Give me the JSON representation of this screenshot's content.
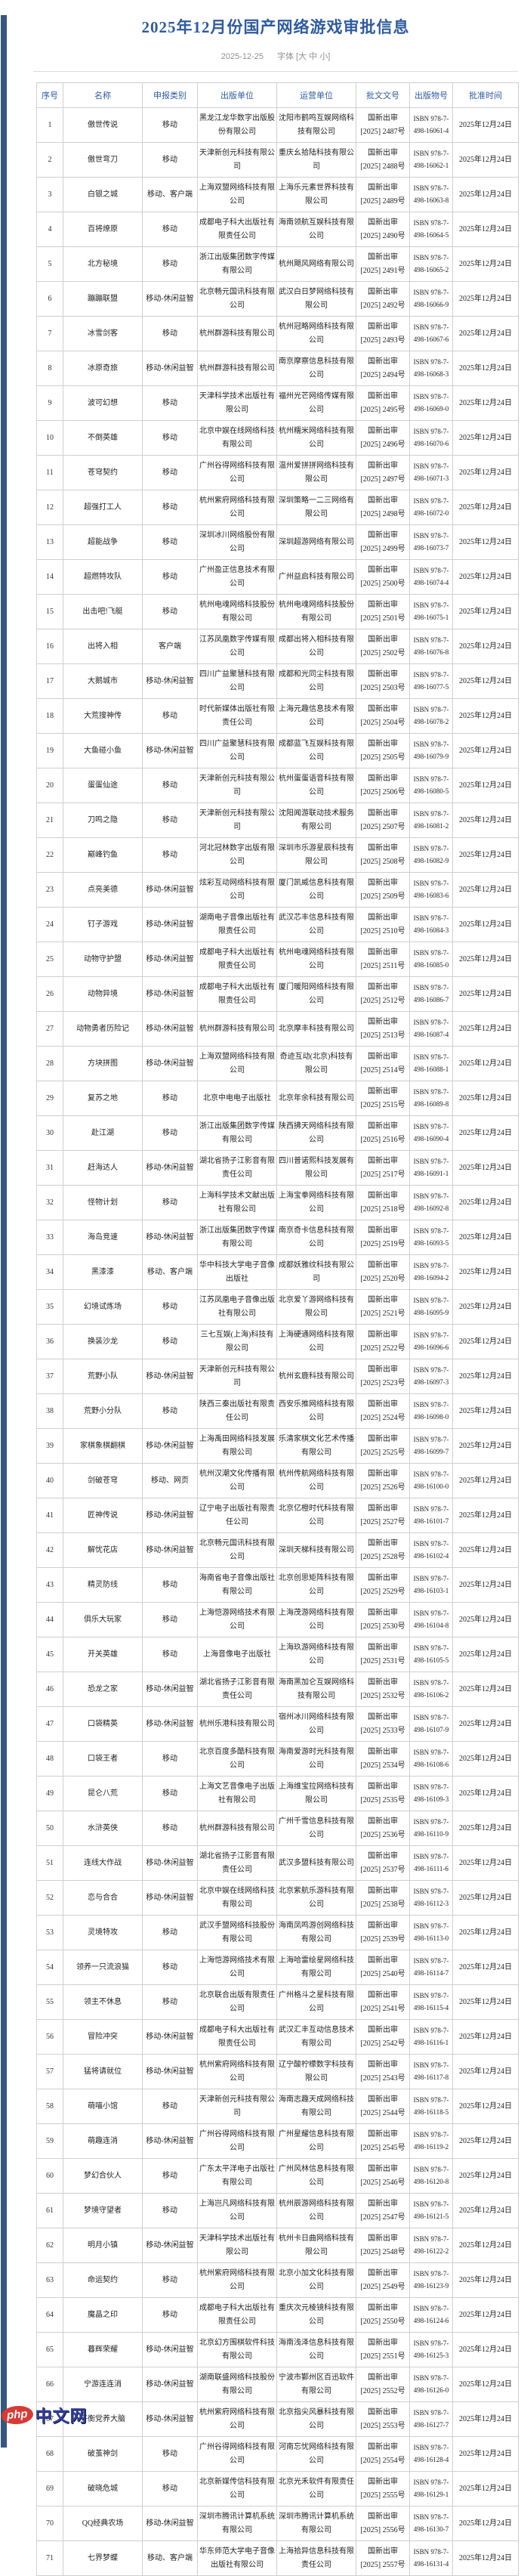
{
  "page": {
    "title": "2025年12月份国产网络游戏审批信息",
    "pub_date": "2025-12-25",
    "font_control": "字体 [大 中 小]",
    "accent_color": "#2e5ba0",
    "left_bar_color": "#36587c",
    "watermark": {
      "badge": "php",
      "text": "中文网"
    }
  },
  "table": {
    "headers": [
      "序号",
      "名称",
      "申报类别",
      "出版单位",
      "运营单位",
      "批文文号",
      "出版物号",
      "批准时间"
    ],
    "doc_line1": "国新出审",
    "doc_line2_pre": "[2025] ",
    "doc_line2_suf": "号",
    "isbn_line1": "ISBN 978-7-",
    "isbn_line2_pre": "498-",
    "approval_date": "2025年12月24日",
    "rows": [
      [
        "傲世传说",
        "移动",
        "黑龙江龙华数字出版股份有限公司",
        "沈阳市鹤鸣互娱网络科技有限公司",
        "2487",
        "16061-4"
      ],
      [
        "傲世弯刀",
        "移动",
        "天津新创元科技有限公司",
        "重庆幺拾陆科技有限公司",
        "2488",
        "16062-1"
      ],
      [
        "白银之城",
        "移动、客户端",
        "上海双盟网络科技有限公司",
        "上海乐元素世界科技有限公司",
        "2489",
        "16063-8"
      ],
      [
        "百将燎原",
        "移动",
        "成都电子科大出版社有限责任公司",
        "海南领航互娱科技有限公司",
        "2490",
        "16064-5"
      ],
      [
        "北方秘境",
        "移动",
        "浙江出版集团数字传媒有限公司",
        "杭州飓风网络有限公司",
        "2491",
        "16065-2"
      ],
      [
        "蹦蹦联盟",
        "移动-休闲益智",
        "北京畅元国讯科技有限公司",
        "武汉白日梦网络科技有限公司",
        "2492",
        "16066-9"
      ],
      [
        "冰雪剑客",
        "移动",
        "杭州群游科技有限公司",
        "杭州冠略网络科技有限公司",
        "2493",
        "16067-6"
      ],
      [
        "冰原奇旅",
        "移动-休闲益智",
        "杭州群游科技有限公司",
        "南京摩察信息科技有限公司",
        "2494",
        "16068-3"
      ],
      [
        "波可幻想",
        "移动",
        "天津科学技术出版社有限公司",
        "福州光芒网络传媒有限公司",
        "2495",
        "16069-0"
      ],
      [
        "不倒英雄",
        "移动",
        "北京中娱在线网络科技有限公司",
        "杭州糯米网络科技有限公司",
        "2496",
        "16070-6"
      ],
      [
        "苍穹契约",
        "移动",
        "广州谷得网络科技有限公司",
        "温州爱拼拼网络科技有限公司",
        "2497",
        "16071-3"
      ],
      [
        "超强打工人",
        "移动",
        "杭州紫府网络科技有限公司",
        "深圳策略一二三网络有限公司",
        "2498",
        "16072-0"
      ],
      [
        "超能战争",
        "移动",
        "深圳冰川网络股份有限公司",
        "深圳超游网络有限公司",
        "2499",
        "16073-7"
      ],
      [
        "超燃特攻队",
        "移动",
        "广州盈正信息技术有限公司",
        "广州益启科技有限公司",
        "2500",
        "16074-4"
      ],
      [
        "出击吧!飞艇",
        "移动",
        "杭州电魂网络科技股份有限公司",
        "杭州电魂网络科技股份有限公司",
        "2501",
        "16075-1"
      ],
      [
        "出将入相",
        "客户端",
        "江苏凤凰数字传媒有限公司",
        "成都出将入相科技有限公司",
        "2502",
        "16076-8"
      ],
      [
        "大鹅城市",
        "移动-休闲益智",
        "四川广益聚慧科技有限公司",
        "成都和光同尘科技有限公司",
        "2503",
        "16077-5"
      ],
      [
        "大荒搜神传",
        "移动",
        "时代新媒体出版社有限责任公司",
        "上海元趣信息技术有限公司",
        "2504",
        "16078-2"
      ],
      [
        "大鱼碰小鱼",
        "移动-休闲益智",
        "四川广益聚慧科技有限公司",
        "成都蓝飞互娱科技有限公司",
        "2505",
        "16079-9"
      ],
      [
        "蛋蛋仙途",
        "移动",
        "天津新创元科技有限公司",
        "杭州蛋蛋语音科技有限公司",
        "2506",
        "16080-5"
      ],
      [
        "刀鸣之隐",
        "移动",
        "天津新创元科技有限公司",
        "沈阳闻游联动技术服务有限公司",
        "2507",
        "16081-2"
      ],
      [
        "巅峰钓鱼",
        "移动",
        "河北冠林数字出版有限公司",
        "深圳市乐游星辰科技有限公司",
        "2508",
        "16082-9"
      ],
      [
        "点亮美德",
        "移动-休闲益智",
        "炫彩互动网络科技有限公司",
        "厦门凯威信息科技有限公司",
        "2509",
        "16083-6"
      ],
      [
        "钉子游戏",
        "移动-休闲益智",
        "湖南电子音像出版社有限责任公司",
        "武汉芯丰信息科技有限公司",
        "2510",
        "16084-3"
      ],
      [
        "动物守护盟",
        "移动-休闲益智",
        "成都电子科大出版社有限责任公司",
        "杭州电魂网络科技有限公司",
        "2511",
        "16085-0"
      ],
      [
        "动物异境",
        "移动-休闲益智",
        "成都电子科大出版社有限责任公司",
        "厦门暖阳网络科技有限公司",
        "2512",
        "16086-7"
      ],
      [
        "动物勇者历险记",
        "移动-休闲益智",
        "杭州群游科技有限公司",
        "北京摩丰科技有限公司",
        "2513",
        "16087-4"
      ],
      [
        "方块拼图",
        "移动-休闲益智",
        "上海双盟网络科技有限公司",
        "奇迹互动(北京)科技有限公司",
        "2514",
        "16088-1"
      ],
      [
        "复苏之地",
        "移动",
        "北京中电电子出版社",
        "北京年余科技有限公司",
        "2515",
        "16089-8"
      ],
      [
        "赴江湖",
        "移动",
        "浙江出版集团数字传媒有限公司",
        "陕西拂天网络科技有限公司",
        "2516",
        "16090-4"
      ],
      [
        "赶海达人",
        "移动-休闲益智",
        "湖北省扬子江影音有限责任公司",
        "四川普诺熙科技发展有限公司",
        "2517",
        "16091-1"
      ],
      [
        "怪物计划",
        "移动",
        "上海科学技术文献出版社有限公司",
        "上海宝拳网络科技有限公司",
        "2518",
        "16092-8"
      ],
      [
        "海岛竞速",
        "移动-休闲益智",
        "浙江出版集团数字传媒有限公司",
        "南京奇卡信息科技有限公司",
        "2519",
        "16093-5"
      ],
      [
        "黑漆漆",
        "移动、客户端",
        "华中科技大学电子音像出版社",
        "成都妖雅纹科技有限公司",
        "2520",
        "16094-2"
      ],
      [
        "幻境试炼场",
        "移动",
        "江苏凤凰电子音像出版社有限公司",
        "北京爱丫游网络科技有限公司",
        "2521",
        "16095-9"
      ],
      [
        "换装沙龙",
        "移动",
        "三七互娱(上海)科技有限公司",
        "上海硬通网络科技有限公司",
        "2522",
        "16096-6"
      ],
      [
        "荒野小队",
        "移动-休闲益智",
        "天津新创元科技有限公司",
        "杭州玄鹿科技有限公司",
        "2523",
        "16097-3"
      ],
      [
        "荒野小分队",
        "移动",
        "陕西三秦出版社有限责任公司",
        "西安乐推网络科技有限公司",
        "2524",
        "16098-0"
      ],
      [
        "家棋象棋翻棋",
        "移动-休闲益智",
        "上海禹田网络科技发展有限公司",
        "乐清家棋文化艺术传播有限公司",
        "2525",
        "16099-7"
      ],
      [
        "剑破苍穹",
        "移动、网页",
        "杭州汉潮文化传播有限公司",
        "杭州传航网络科技有限公司",
        "2526",
        "16100-0"
      ],
      [
        "匠神传说",
        "移动-休闲益智",
        "辽宁电子出版社有限责任公司",
        "北京亿橙时代科技有限公司",
        "2527",
        "16101-7"
      ],
      [
        "解忧花店",
        "移动-休闲益智",
        "北京畅元国讯科技有限公司",
        "深圳天梯科技有限公司",
        "2528",
        "16102-4"
      ],
      [
        "精灵防线",
        "移动",
        "海南省电子音像出版社有限公司",
        "北京创思矩阵科技有限公司",
        "2529",
        "16103-1"
      ],
      [
        "俱乐大玩家",
        "移动",
        "上海恺游网络技术有限公司",
        "上海茂游网络科技有限公司",
        "2530",
        "16104-8"
      ],
      [
        "开关英雄",
        "移动",
        "上海音像电子出版社",
        "上海玖游网络科技有限公司",
        "2531",
        "16105-5"
      ],
      [
        "恐龙之家",
        "移动-休闲益智",
        "湖北省扬子江影音有限责任公司",
        "海南黑加仑互娱网络科技有限公司",
        "2532",
        "16106-2"
      ],
      [
        "口袋精英",
        "移动-休闲益智",
        "杭州乐港科技有限公司",
        "宿州冰川网络科技有限公司",
        "2533",
        "16107-9"
      ],
      [
        "口袋王者",
        "移动",
        "北京百度多酷科技有限公司",
        "海南爱游时光科技有限公司",
        "2534",
        "16108-6"
      ],
      [
        "昆仑八荒",
        "移动",
        "上海文艺音像电子出版社有限公司",
        "上海维宝拉网络科技有限公司",
        "2535",
        "16109-3"
      ],
      [
        "水浒英侠",
        "移动",
        "杭州群游科技有限公司",
        "广州千雪信息科技有限公司",
        "2536",
        "16110-9"
      ],
      [
        "连线大作战",
        "移动-休闲益智",
        "湖北省扬子江影音有限责任公司",
        "武汉多盟科技有限公司",
        "2537",
        "16111-6"
      ],
      [
        "恋与合合",
        "移动-休闲益智",
        "北京中娱在线网络科技有限公司",
        "北京紫航乐游科技有限公司",
        "2538",
        "16112-3"
      ],
      [
        "灵境特攻",
        "移动",
        "武汉手盟网络科技股份有限公司",
        "海南凤鸣游创网络科技有限公司",
        "2539",
        "16113-0"
      ],
      [
        "领养一只流浪猫",
        "移动",
        "上海恺游网络技术有限公司",
        "上海哈雷绘星网络科技有限公司",
        "2540",
        "16114-7"
      ],
      [
        "领主不休息",
        "移动",
        "北京联合出版有限责任公司",
        "广州格斗之星科技有限公司",
        "2541",
        "16115-4"
      ],
      [
        "冒险冲突",
        "移动-休闲益智",
        "成都电子科大出版社有限责任公司",
        "武汉汇丰互动信息技术有限公司",
        "2542",
        "16116-1"
      ],
      [
        "猛将请就位",
        "移动-休闲益智",
        "杭州紫府网络科技有限公司",
        "辽宁酸柠檬数字科技有限公司",
        "2543",
        "16117-8"
      ],
      [
        "萌喵小馆",
        "移动",
        "天津新创元科技有限公司",
        "海南志趣天成网络科技有限公司",
        "2544",
        "16118-5"
      ],
      [
        "萌趣连消",
        "移动-休闲益智",
        "广州谷得网络科技有限公司",
        "广州星耀信息科技有限公司",
        "2545",
        "16119-2"
      ],
      [
        "梦幻合伙人",
        "移动",
        "广东太平洋电子出版社有限公司",
        "广州风林信息科技有限公司",
        "2546",
        "16120-8"
      ],
      [
        "梦境守望者",
        "移动",
        "上海岂凡网络科技有限公司",
        "杭州辰游网络科技有限公司",
        "2547",
        "16121-5"
      ],
      [
        "明月小镇",
        "移动-休闲益智",
        "天津科学技术出版社有限公司",
        "杭州卡日曲网络科技有限公司",
        "2548",
        "16122-2"
      ],
      [
        "命运契约",
        "移动",
        "杭州紫府网络科技有限公司",
        "北京小加文化科技有限公司",
        "2549",
        "16123-9"
      ],
      [
        "魔晶之印",
        "移动",
        "成都电子科大出版社有限责任公司",
        "重庆次元棱镜科技有限公司",
        "2550",
        "16124-6"
      ],
      [
        "暮辉荣耀",
        "移动-休闲益智",
        "北京幻方围棋软件科技有限公司",
        "海南浅泽信息科技有限公司",
        "2551",
        "16125-3"
      ],
      [
        "宁游连连消",
        "移动-休闲益智",
        "湖南联盛网络科技股份有限公司",
        "宁波市鄞州区百迅软件有限公司",
        "2552",
        "16126-0"
      ],
      [
        "平衡党养大脑",
        "移动-休闲益智",
        "杭州紫府网络科技有限公司",
        "北京指尖风暴科技有限公司",
        "2553",
        "16127-7"
      ],
      [
        "破茧神剑",
        "移动",
        "广州谷得网络科技有限公司",
        "河南忘忧网络科技有限公司",
        "2554",
        "16128-4"
      ],
      [
        "破晓危城",
        "移动",
        "北京新媒传信科技有限公司",
        "北京光禾软件有限责任公司",
        "2555",
        "16129-1"
      ],
      [
        "QQ经典农场",
        "移动-休闲益智",
        "深圳市腾讯计算机系统有限公司",
        "深圳市腾讯计算机系统有限公司",
        "2556",
        "16130-7"
      ],
      [
        "七界梦蝶",
        "移动、客户端",
        "华东师范大学电子音像出版社有限公司",
        "上海拾异信息科技有限责任公司",
        "2557",
        "16131-4"
      ]
    ]
  }
}
